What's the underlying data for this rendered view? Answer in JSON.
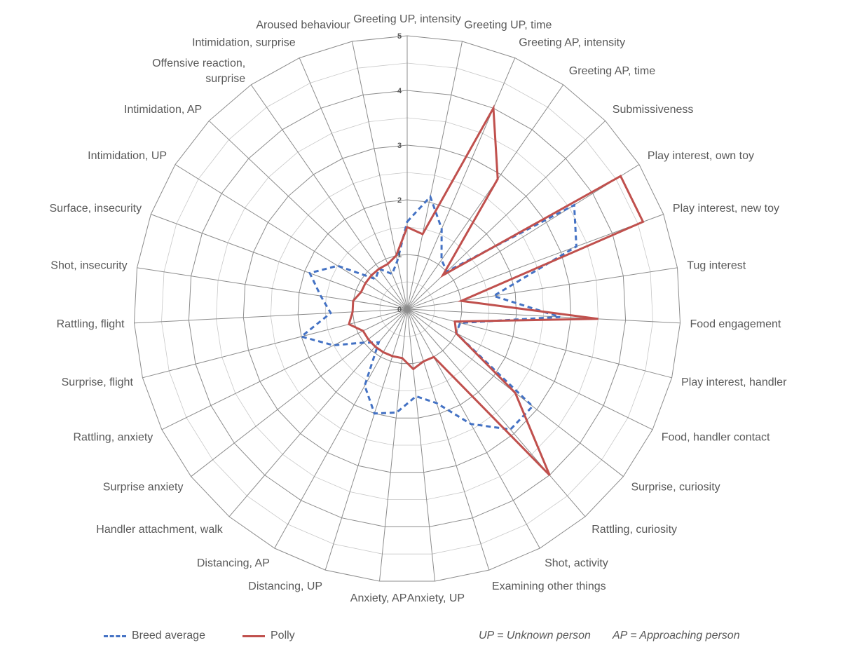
{
  "chart_data": {
    "type": "radar",
    "categories": [
      "Greeting UP, intensity",
      "Greeting UP, time",
      "Greeting AP, intensity",
      "Greeting AP, time",
      "Submissiveness",
      "Play interest, own toy",
      "Play interest, new toy",
      "Tug interest",
      "Food engagement",
      "Play interest, handler",
      "Food, handler contact",
      "Surprise, curiosity",
      "Rattling, curiosity",
      "Shot, activity",
      "Examining other things",
      "Anxiety, UP",
      "Anxiety, AP",
      "Distancing, UP",
      "Distancing, AP",
      "Handler attachment, walk",
      "Surprise anxiety",
      "Rattling, anxiety",
      "Surprise, flight",
      "Rattling, flight",
      "Shot, insecurity",
      "Surface, insecurity",
      "Intimidation, UP",
      "Intimidation, AP",
      "Offensive reaction, surprise",
      "Intimidation, surprise",
      "Aroused behaviour"
    ],
    "series": [
      {
        "name": "Breed average",
        "color": "#4472C4",
        "dash": "dashed",
        "values": [
          1.6,
          2.1,
          1.6,
          1.1,
          1.0,
          3.6,
          3.3,
          1.6,
          2.8,
          1.0,
          1.0,
          2.9,
          2.9,
          2.4,
          1.8,
          1.6,
          1.9,
          2.0,
          1.6,
          0.8,
          1.0,
          1.5,
          2.0,
          1.4,
          1.6,
          1.9,
          1.5,
          0.8,
          0.9,
          0.7,
          0.9
        ]
      },
      {
        "name": "Polly",
        "color": "#C0504D",
        "dash": "solid",
        "values": [
          1.5,
          1.4,
          4.0,
          2.9,
          0.9,
          4.6,
          4.6,
          1.0,
          3.5,
          0.9,
          1.0,
          2.5,
          4.0,
          1.0,
          1.0,
          1.1,
          0.9,
          0.9,
          0.9,
          0.9,
          0.9,
          0.9,
          1.1,
          1.0,
          1.0,
          0.9,
          0.9,
          0.9,
          0.9,
          0.9,
          1.0
        ]
      }
    ],
    "rlim": [
      0,
      5
    ],
    "ticks": [
      "0",
      "1",
      "2",
      "3",
      "4",
      "5"
    ],
    "grid": true,
    "legend_position": "bottom"
  },
  "legend": {
    "breed": "Breed average",
    "polly": "Polly"
  },
  "notes": {
    "up": "UP = Unknown person",
    "ap": "AP = Approaching person"
  }
}
